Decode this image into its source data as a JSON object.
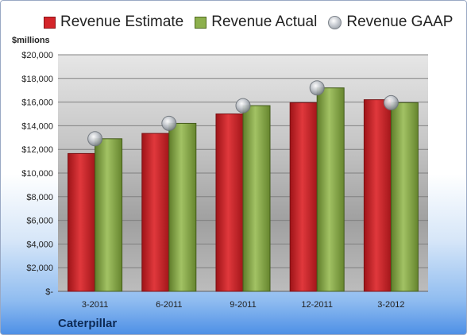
{
  "chart_data": {
    "type": "bar",
    "ylabel": "$millions",
    "categories": [
      "3-2011",
      "6-2011",
      "9-2011",
      "12-2011",
      "3-2012"
    ],
    "ylim": [
      0,
      20000
    ],
    "yticks": [
      "$-",
      "$2,000",
      "$4,000",
      "$6,000",
      "$8,000",
      "$10,000",
      "$12,000",
      "$14,000",
      "$16,000",
      "$18,000",
      "$20,000"
    ],
    "ytick_values": [
      0,
      2000,
      4000,
      6000,
      8000,
      10000,
      12000,
      14000,
      16000,
      18000,
      20000
    ],
    "grid": true,
    "legend_position": "top",
    "series": [
      {
        "name": "Revenue Estimate",
        "kind": "bar",
        "color": "#d4252a",
        "values": [
          11650,
          13350,
          15000,
          15950,
          16200
        ]
      },
      {
        "name": "Revenue Actual",
        "kind": "bar",
        "color": "#8db04d",
        "values": [
          12900,
          14200,
          15700,
          17200,
          15950
        ]
      },
      {
        "name": "Revenue GAAP",
        "kind": "marker",
        "color": "#b8bcc2",
        "values": [
          12900,
          14200,
          15700,
          17200,
          15950
        ]
      }
    ]
  },
  "footer": {
    "company": "Caterpillar"
  }
}
